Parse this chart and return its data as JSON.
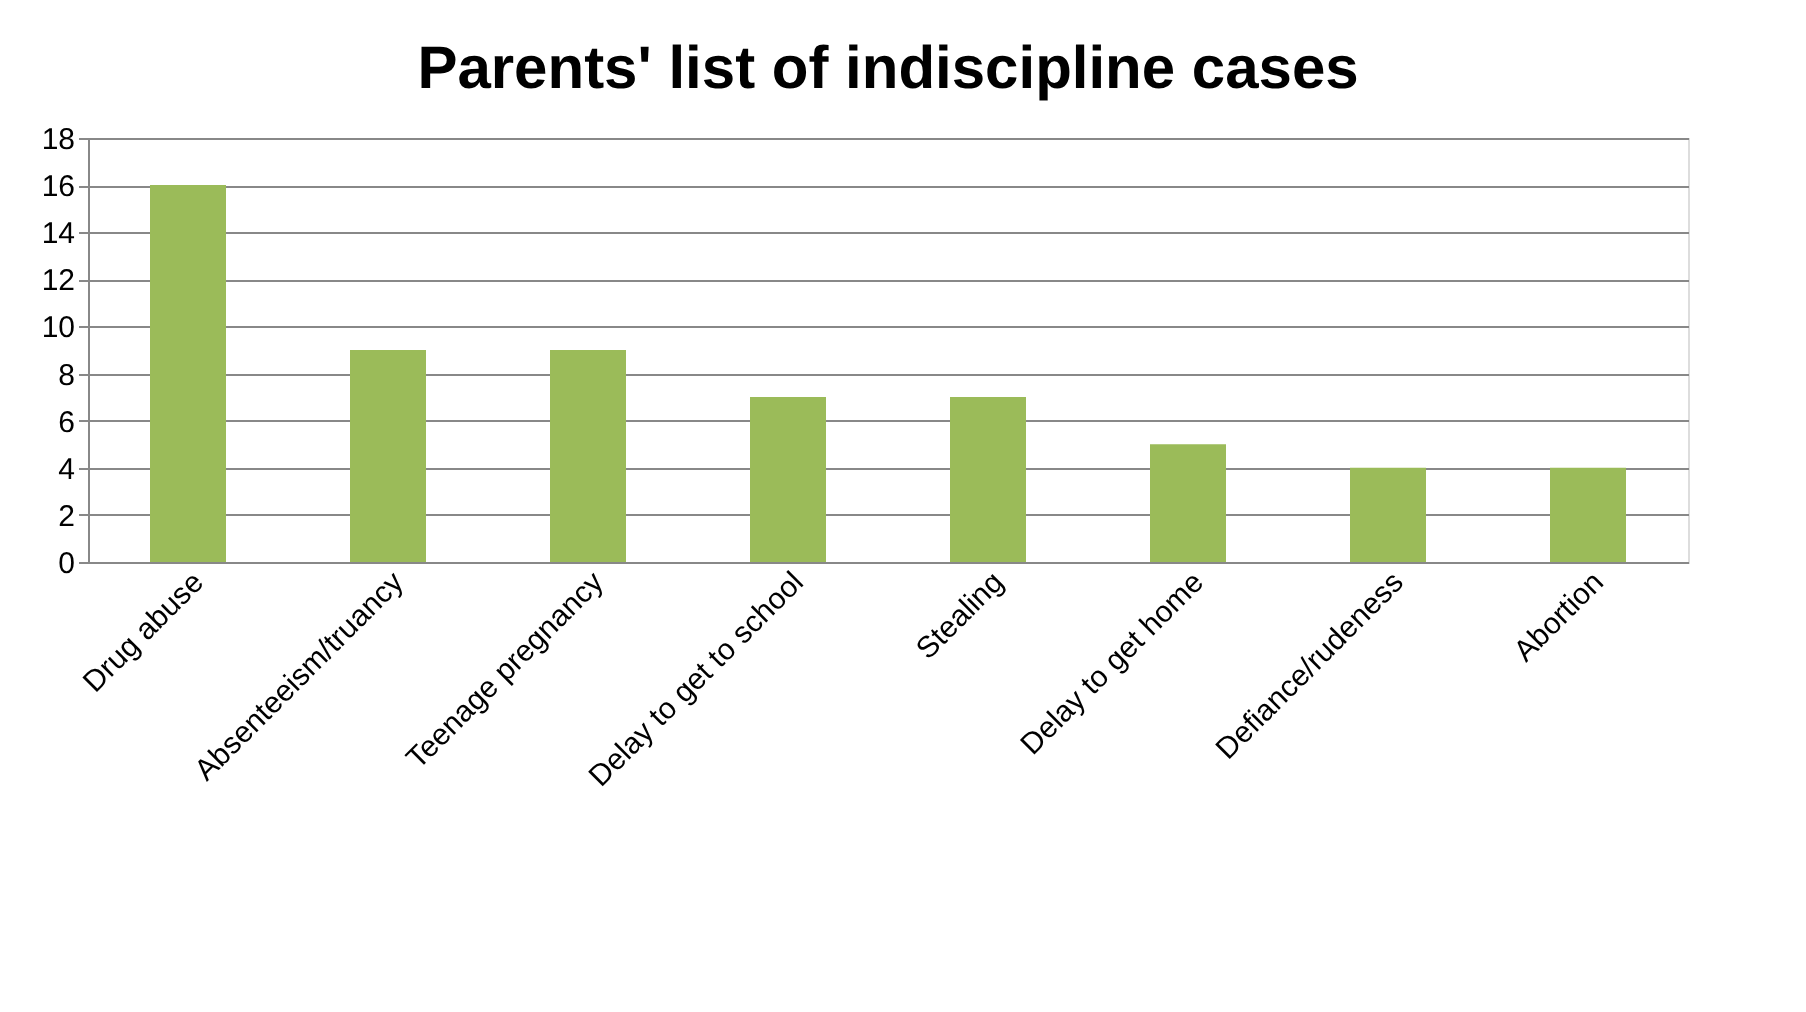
{
  "chart_data": {
    "type": "bar",
    "title": "Parents' list of indiscipline cases",
    "categories": [
      "Drug abuse",
      "Absenteeism/truancy",
      "Teenage pregnancy",
      "Delay to get to school",
      "Stealing",
      "Delay to get home",
      "Defiance/rudeness",
      "Abortion"
    ],
    "values": [
      16,
      9,
      9,
      7,
      7,
      5,
      4,
      4
    ],
    "color": "#9bbb59",
    "ylim": [
      0,
      18
    ],
    "yticks": [
      0,
      2,
      4,
      6,
      8,
      10,
      12,
      14,
      16,
      18
    ],
    "grid": "y"
  }
}
